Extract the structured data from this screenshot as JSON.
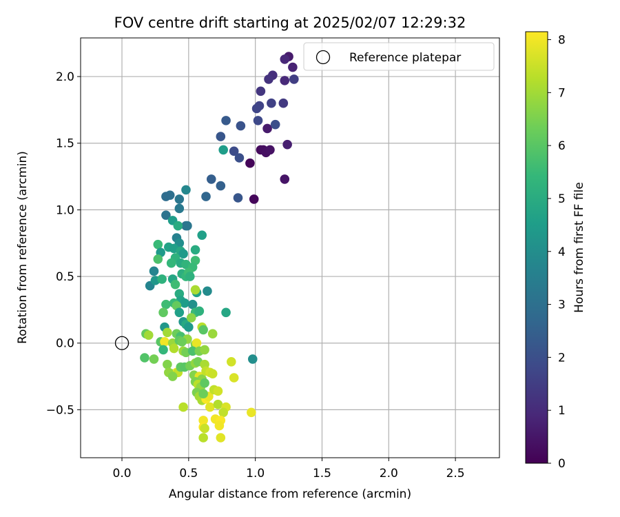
{
  "chart_data": {
    "type": "scatter",
    "title": "FOV centre drift starting at 2025/02/07 12:29:32",
    "xlabel": "Angular distance from reference (arcmin)",
    "ylabel": "Rotation from reference (arcmin)",
    "xlim": [
      -0.31,
      2.83
    ],
    "ylim": [
      -0.86,
      2.29
    ],
    "grid": true,
    "x_ticks": [
      "0.0",
      "0.5",
      "1.0",
      "1.5",
      "2.0",
      "2.5"
    ],
    "x_tick_values": [
      0.0,
      0.5,
      1.0,
      1.5,
      2.0,
      2.5
    ],
    "y_ticks": [
      "−0.5",
      "0.0",
      "0.5",
      "1.0",
      "1.5",
      "2.0"
    ],
    "y_tick_values": [
      -0.5,
      0.0,
      0.5,
      1.0,
      1.5,
      2.0
    ],
    "legend": {
      "position": "top-right",
      "entries": [
        "Reference platepar"
      ]
    },
    "reference_point": {
      "x": 0.0,
      "y": 0.0
    },
    "colorbar": {
      "label": "Hours from first FF file",
      "range": [
        0,
        8.15
      ],
      "ticks": [
        "0",
        "1",
        "2",
        "3",
        "4",
        "5",
        "6",
        "7",
        "8"
      ],
      "tick_values": [
        0,
        1,
        2,
        3,
        4,
        5,
        6,
        7,
        8
      ],
      "colormap": [
        "#440154",
        "#482878",
        "#3e4989",
        "#31688e",
        "#26828e",
        "#1f9e89",
        "#35b779",
        "#6ece58",
        "#b5de2b",
        "#fde725"
      ]
    },
    "points": [
      {
        "x": 0.96,
        "y": 1.35,
        "h": 0.1
      },
      {
        "x": 0.99,
        "y": 1.08,
        "h": 0.15
      },
      {
        "x": 1.04,
        "y": 1.45,
        "h": 0.2
      },
      {
        "x": 1.06,
        "y": 1.45,
        "h": 0.3
      },
      {
        "x": 1.08,
        "y": 1.43,
        "h": 0.35
      },
      {
        "x": 1.11,
        "y": 1.45,
        "h": 0.4
      },
      {
        "x": 1.22,
        "y": 1.23,
        "h": 0.45
      },
      {
        "x": 1.09,
        "y": 1.61,
        "h": 0.6
      },
      {
        "x": 1.24,
        "y": 1.49,
        "h": 0.7
      },
      {
        "x": 1.25,
        "y": 2.15,
        "h": 0.6
      },
      {
        "x": 1.28,
        "y": 2.07,
        "h": 0.8
      },
      {
        "x": 1.22,
        "y": 2.13,
        "h": 0.9
      },
      {
        "x": 1.22,
        "y": 1.97,
        "h": 0.95
      },
      {
        "x": 1.13,
        "y": 2.01,
        "h": 1.1
      },
      {
        "x": 1.1,
        "y": 1.98,
        "h": 1.2
      },
      {
        "x": 1.04,
        "y": 1.89,
        "h": 1.3
      },
      {
        "x": 1.29,
        "y": 1.98,
        "h": 1.5
      },
      {
        "x": 1.21,
        "y": 1.8,
        "h": 1.4
      },
      {
        "x": 1.12,
        "y": 1.8,
        "h": 1.6
      },
      {
        "x": 1.03,
        "y": 1.78,
        "h": 1.65
      },
      {
        "x": 1.01,
        "y": 1.76,
        "h": 1.7
      },
      {
        "x": 1.02,
        "y": 1.67,
        "h": 1.8
      },
      {
        "x": 1.15,
        "y": 1.64,
        "h": 2.0
      },
      {
        "x": 0.89,
        "y": 1.63,
        "h": 2.1
      },
      {
        "x": 0.84,
        "y": 1.44,
        "h": 1.9
      },
      {
        "x": 0.88,
        "y": 1.39,
        "h": 2.0
      },
      {
        "x": 0.74,
        "y": 1.55,
        "h": 2.2
      },
      {
        "x": 0.78,
        "y": 1.67,
        "h": 2.3
      },
      {
        "x": 0.87,
        "y": 1.09,
        "h": 2.2
      },
      {
        "x": 0.74,
        "y": 1.18,
        "h": 2.5
      },
      {
        "x": 0.67,
        "y": 1.23,
        "h": 2.45
      },
      {
        "x": 0.63,
        "y": 1.1,
        "h": 2.7
      },
      {
        "x": 0.76,
        "y": 1.45,
        "h": 4.5
      },
      {
        "x": 0.48,
        "y": 1.15,
        "h": 3.8
      },
      {
        "x": 0.43,
        "y": 1.08,
        "h": 3.2
      },
      {
        "x": 0.43,
        "y": 1.01,
        "h": 3.3
      },
      {
        "x": 0.36,
        "y": 1.11,
        "h": 3.0
      },
      {
        "x": 0.33,
        "y": 1.1,
        "h": 2.9
      },
      {
        "x": 0.33,
        "y": 0.96,
        "h": 3.1
      },
      {
        "x": 0.48,
        "y": 0.88,
        "h": 3.0
      },
      {
        "x": 0.49,
        "y": 0.88,
        "h": 3.2
      },
      {
        "x": 0.38,
        "y": 0.92,
        "h": 4.5
      },
      {
        "x": 0.42,
        "y": 0.88,
        "h": 5.0
      },
      {
        "x": 0.41,
        "y": 0.79,
        "h": 3.6
      },
      {
        "x": 0.43,
        "y": 0.75,
        "h": 4.0
      },
      {
        "x": 0.6,
        "y": 0.81,
        "h": 4.6
      },
      {
        "x": 0.55,
        "y": 0.7,
        "h": 5.0
      },
      {
        "x": 0.27,
        "y": 0.74,
        "h": 5.5
      },
      {
        "x": 0.29,
        "y": 0.68,
        "h": 4.4
      },
      {
        "x": 0.35,
        "y": 0.72,
        "h": 4.7
      },
      {
        "x": 0.39,
        "y": 0.71,
        "h": 4.6
      },
      {
        "x": 0.44,
        "y": 0.69,
        "h": 4.9
      },
      {
        "x": 0.46,
        "y": 0.67,
        "h": 4.4
      },
      {
        "x": 0.4,
        "y": 0.64,
        "h": 5.2
      },
      {
        "x": 0.37,
        "y": 0.6,
        "h": 5.4
      },
      {
        "x": 0.27,
        "y": 0.63,
        "h": 5.8
      },
      {
        "x": 0.44,
        "y": 0.6,
        "h": 5.0
      },
      {
        "x": 0.48,
        "y": 0.59,
        "h": 5.3
      },
      {
        "x": 0.55,
        "y": 0.62,
        "h": 5.6
      },
      {
        "x": 0.53,
        "y": 0.57,
        "h": 5.5
      },
      {
        "x": 0.24,
        "y": 0.54,
        "h": 3.7
      },
      {
        "x": 0.21,
        "y": 0.43,
        "h": 3.7
      },
      {
        "x": 0.25,
        "y": 0.47,
        "h": 4.3
      },
      {
        "x": 0.3,
        "y": 0.48,
        "h": 5.2
      },
      {
        "x": 0.38,
        "y": 0.48,
        "h": 4.8
      },
      {
        "x": 0.4,
        "y": 0.44,
        "h": 5.6
      },
      {
        "x": 0.45,
        "y": 0.52,
        "h": 5.1
      },
      {
        "x": 0.48,
        "y": 0.5,
        "h": 5.4
      },
      {
        "x": 0.5,
        "y": 0.53,
        "h": 5.6
      },
      {
        "x": 0.51,
        "y": 0.5,
        "h": 5.2
      },
      {
        "x": 0.56,
        "y": 0.38,
        "h": 4.6
      },
      {
        "x": 0.55,
        "y": 0.4,
        "h": 7.1
      },
      {
        "x": 0.64,
        "y": 0.39,
        "h": 3.9
      },
      {
        "x": 0.43,
        "y": 0.37,
        "h": 5.0
      },
      {
        "x": 0.44,
        "y": 0.32,
        "h": 4.7
      },
      {
        "x": 0.47,
        "y": 0.3,
        "h": 4.5
      },
      {
        "x": 0.33,
        "y": 0.29,
        "h": 5.6
      },
      {
        "x": 0.39,
        "y": 0.3,
        "h": 5.5
      },
      {
        "x": 0.41,
        "y": 0.28,
        "h": 6.2
      },
      {
        "x": 0.53,
        "y": 0.29,
        "h": 4.1
      },
      {
        "x": 0.31,
        "y": 0.23,
        "h": 6.1
      },
      {
        "x": 0.43,
        "y": 0.23,
        "h": 4.6
      },
      {
        "x": 0.55,
        "y": 0.23,
        "h": 5.5
      },
      {
        "x": 0.58,
        "y": 0.24,
        "h": 5.2
      },
      {
        "x": 0.78,
        "y": 0.23,
        "h": 4.8
      },
      {
        "x": 0.46,
        "y": 0.16,
        "h": 4.3
      },
      {
        "x": 0.48,
        "y": 0.14,
        "h": 4.9
      },
      {
        "x": 0.5,
        "y": 0.12,
        "h": 4.4
      },
      {
        "x": 0.52,
        "y": 0.19,
        "h": 6.7
      },
      {
        "x": 0.6,
        "y": 0.12,
        "h": 7.3
      },
      {
        "x": 0.61,
        "y": 0.1,
        "h": 6.0
      },
      {
        "x": 0.32,
        "y": 0.12,
        "h": 4.3
      },
      {
        "x": 0.18,
        "y": 0.07,
        "h": 6.2
      },
      {
        "x": 0.2,
        "y": 0.06,
        "h": 7.0
      },
      {
        "x": 0.34,
        "y": 0.08,
        "h": 7.0
      },
      {
        "x": 0.41,
        "y": 0.07,
        "h": 6.3
      },
      {
        "x": 0.44,
        "y": 0.05,
        "h": 5.7
      },
      {
        "x": 0.49,
        "y": 0.03,
        "h": 6.8
      },
      {
        "x": 0.68,
        "y": 0.07,
        "h": 6.9
      },
      {
        "x": 0.29,
        "y": 0.01,
        "h": 6.0
      },
      {
        "x": 0.32,
        "y": 0.01,
        "h": 8.0
      },
      {
        "x": 0.38,
        "y": 0.0,
        "h": 6.9
      },
      {
        "x": 0.43,
        "y": 0.02,
        "h": 6.1
      },
      {
        "x": 0.45,
        "y": 0.01,
        "h": 6.3
      },
      {
        "x": 0.55,
        "y": -0.01,
        "h": 6.5
      },
      {
        "x": 0.56,
        "y": 0.0,
        "h": 7.9
      },
      {
        "x": 0.31,
        "y": -0.05,
        "h": 5.4
      },
      {
        "x": 0.39,
        "y": -0.04,
        "h": 7.2
      },
      {
        "x": 0.46,
        "y": -0.06,
        "h": 6.9
      },
      {
        "x": 0.48,
        "y": -0.07,
        "h": 6.4
      },
      {
        "x": 0.53,
        "y": -0.06,
        "h": 5.8
      },
      {
        "x": 0.58,
        "y": -0.06,
        "h": 6.5
      },
      {
        "x": 0.62,
        "y": -0.05,
        "h": 6.8
      },
      {
        "x": 0.98,
        "y": -0.12,
        "h": 4.0
      },
      {
        "x": 0.17,
        "y": -0.11,
        "h": 5.9
      },
      {
        "x": 0.24,
        "y": -0.12,
        "h": 6.4
      },
      {
        "x": 0.34,
        "y": -0.16,
        "h": 6.6
      },
      {
        "x": 0.37,
        "y": -0.23,
        "h": 6.3
      },
      {
        "x": 0.41,
        "y": -0.22,
        "h": 8.0
      },
      {
        "x": 0.42,
        "y": -0.22,
        "h": 7.4
      },
      {
        "x": 0.44,
        "y": -0.18,
        "h": 6.1
      },
      {
        "x": 0.47,
        "y": -0.18,
        "h": 6.0
      },
      {
        "x": 0.51,
        "y": -0.17,
        "h": 6.4
      },
      {
        "x": 0.55,
        "y": -0.15,
        "h": 6.8
      },
      {
        "x": 0.57,
        "y": -0.14,
        "h": 6.4
      },
      {
        "x": 0.62,
        "y": -0.16,
        "h": 7.1
      },
      {
        "x": 0.82,
        "y": -0.14,
        "h": 7.6
      },
      {
        "x": 0.35,
        "y": -0.22,
        "h": 6.8
      },
      {
        "x": 0.38,
        "y": -0.25,
        "h": 6.6
      },
      {
        "x": 0.54,
        "y": -0.24,
        "h": 6.6
      },
      {
        "x": 0.58,
        "y": -0.25,
        "h": 7.8
      },
      {
        "x": 0.6,
        "y": -0.27,
        "h": 6.7
      },
      {
        "x": 0.63,
        "y": -0.21,
        "h": 7.4
      },
      {
        "x": 0.66,
        "y": -0.22,
        "h": 7.6
      },
      {
        "x": 0.68,
        "y": -0.23,
        "h": 7.5
      },
      {
        "x": 0.84,
        "y": -0.26,
        "h": 7.7
      },
      {
        "x": 0.55,
        "y": -0.29,
        "h": 6.5
      },
      {
        "x": 0.57,
        "y": -0.31,
        "h": 7.3
      },
      {
        "x": 0.59,
        "y": -0.33,
        "h": 6.8
      },
      {
        "x": 0.62,
        "y": -0.3,
        "h": 6.1
      },
      {
        "x": 0.56,
        "y": -0.37,
        "h": 6.5
      },
      {
        "x": 0.58,
        "y": -0.4,
        "h": 7.0
      },
      {
        "x": 0.6,
        "y": -0.43,
        "h": 7.1
      },
      {
        "x": 0.63,
        "y": -0.42,
        "h": 8.1
      },
      {
        "x": 0.65,
        "y": -0.4,
        "h": 7.9
      },
      {
        "x": 0.69,
        "y": -0.35,
        "h": 7.4
      },
      {
        "x": 0.72,
        "y": -0.36,
        "h": 7.6
      },
      {
        "x": 0.61,
        "y": -0.38,
        "h": 6.3
      },
      {
        "x": 0.46,
        "y": -0.48,
        "h": 7.3
      },
      {
        "x": 0.66,
        "y": -0.48,
        "h": 7.8
      },
      {
        "x": 0.72,
        "y": -0.46,
        "h": 7.2
      },
      {
        "x": 0.78,
        "y": -0.48,
        "h": 7.7
      },
      {
        "x": 0.76,
        "y": -0.52,
        "h": 7.4
      },
      {
        "x": 0.97,
        "y": -0.52,
        "h": 7.9
      },
      {
        "x": 0.61,
        "y": -0.58,
        "h": 8.0
      },
      {
        "x": 0.61,
        "y": -0.63,
        "h": 8.1
      },
      {
        "x": 0.62,
        "y": -0.64,
        "h": 7.5
      },
      {
        "x": 0.7,
        "y": -0.57,
        "h": 8.0
      },
      {
        "x": 0.74,
        "y": -0.58,
        "h": 8.1
      },
      {
        "x": 0.73,
        "y": -0.62,
        "h": 8.0
      },
      {
        "x": 0.61,
        "y": -0.71,
        "h": 7.3
      },
      {
        "x": 0.74,
        "y": -0.71,
        "h": 7.8
      }
    ]
  }
}
